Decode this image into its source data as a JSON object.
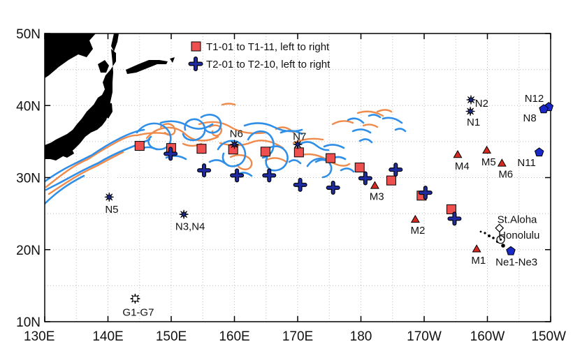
{
  "map": {
    "lat_ticks": [
      "50N",
      "40N",
      "30N",
      "20N",
      "10N"
    ],
    "lon_ticks": [
      "130E",
      "140E",
      "150E",
      "160E",
      "170E",
      "180",
      "170W",
      "160W",
      "150W"
    ],
    "extent": {
      "lon": [
        130,
        210
      ],
      "lat": [
        10,
        50
      ]
    },
    "colors": {
      "land": "#000000",
      "current_warm": "#f08a4b",
      "current_cool": "#2f8fe8",
      "current_white": "#ffffff",
      "grid": "#bdbdbd",
      "square_fill": "#ee5050",
      "cross_fill": "#1f2ba0",
      "triangle_fill": "#d62a20",
      "pentagon_fill": "#1a28c8"
    },
    "legend": [
      {
        "symbol": "square-icon",
        "label": "T1-01 to T1-11, left to right"
      },
      {
        "symbol": "cross-icon",
        "label": "T2-01 to T2-10, left to right"
      }
    ],
    "T1": [
      {
        "lon": 145.0,
        "lat": 34.4
      },
      {
        "lon": 150.0,
        "lat": 34.1
      },
      {
        "lon": 154.8,
        "lat": 34.0
      },
      {
        "lon": 159.8,
        "lat": 33.9
      },
      {
        "lon": 164.9,
        "lat": 33.6
      },
      {
        "lon": 170.2,
        "lat": 33.5
      },
      {
        "lon": 175.2,
        "lat": 32.7
      },
      {
        "lon": 179.8,
        "lat": 31.4
      },
      {
        "lon": 184.8,
        "lat": 29.6
      },
      {
        "lon": 189.6,
        "lat": 27.5
      },
      {
        "lon": 194.3,
        "lat": 25.6
      }
    ],
    "T2": [
      {
        "lon": 149.9,
        "lat": 33.3
      },
      {
        "lon": 155.2,
        "lat": 31.0
      },
      {
        "lon": 160.4,
        "lat": 30.3
      },
      {
        "lon": 165.5,
        "lat": 30.3
      },
      {
        "lon": 170.4,
        "lat": 29.0
      },
      {
        "lon": 175.6,
        "lat": 28.6
      },
      {
        "lon": 180.7,
        "lat": 29.9
      },
      {
        "lon": 185.5,
        "lat": 31.1
      },
      {
        "lon": 190.2,
        "lat": 27.9
      },
      {
        "lon": 194.8,
        "lat": 24.3
      }
    ],
    "stations": [
      {
        "symbol": "triangle",
        "lon": 182.2,
        "lat": 28.9,
        "label": "M3",
        "lx": 182.5,
        "ly": 27.4
      },
      {
        "symbol": "triangle",
        "lon": 188.6,
        "lat": 24.2,
        "label": "M2",
        "lx": 189.0,
        "ly": 22.7
      },
      {
        "symbol": "triangle",
        "lon": 195.3,
        "lat": 33.2,
        "label": "M4",
        "lx": 196.0,
        "ly": 31.6
      },
      {
        "symbol": "triangle",
        "lon": 199.9,
        "lat": 33.8,
        "label": "M5",
        "lx": 200.2,
        "ly": 32.2
      },
      {
        "symbol": "triangle",
        "lon": 202.3,
        "lat": 32.0,
        "label": "M6",
        "lx": 202.9,
        "ly": 30.5
      },
      {
        "symbol": "triangle",
        "lon": 198.3,
        "lat": 20.1,
        "label": "M1",
        "lx": 198.6,
        "ly": 18.5
      },
      {
        "symbol": "star",
        "lon": 160.0,
        "lat": 34.6,
        "label": "N6",
        "lx": 160.3,
        "ly": 36.1
      },
      {
        "symbol": "star",
        "lon": 170.0,
        "lat": 34.6,
        "label": "N7",
        "lx": 170.3,
        "ly": 35.7
      },
      {
        "symbol": "star",
        "lon": 140.2,
        "lat": 27.3,
        "label": "N5",
        "lx": 140.6,
        "ly": 25.6
      },
      {
        "symbol": "star",
        "lon": 152.0,
        "lat": 24.9,
        "label": "N3,N4",
        "lx": 153.0,
        "ly": 23.2
      },
      {
        "symbol": "star",
        "lon": 197.4,
        "lat": 40.8,
        "label": "N2",
        "lx": 199.1,
        "ly": 40.3
      },
      {
        "symbol": "star",
        "lon": 197.3,
        "lat": 39.2,
        "label": "N1",
        "lx": 197.8,
        "ly": 37.7
      },
      {
        "symbol": "pentagon",
        "lon": 209.7,
        "lat": 39.8,
        "label": "N12",
        "lx": 207.4,
        "ly": 41.0
      },
      {
        "symbol": "pentagon",
        "lon": 208.9,
        "lat": 39.5,
        "label": "N8",
        "lx": 206.7,
        "ly": 38.3
      },
      {
        "symbol": "pentagon",
        "lon": 208.2,
        "lat": 33.5,
        "label": "N11",
        "lx": 206.2,
        "ly": 32.1
      },
      {
        "symbol": "pentagon",
        "lon": 203.7,
        "lat": 19.8,
        "label": "Ne1-Ne3",
        "lx": 204.6,
        "ly": 18.3
      },
      {
        "symbol": "diamond",
        "lon": 201.9,
        "lat": 23.0,
        "label": "St.Aloha",
        "lx": 204.7,
        "ly": 24.2
      },
      {
        "symbol": "circle",
        "lon": 202.1,
        "lat": 21.4,
        "label": "Honolulu",
        "lx": 205.0,
        "ly": 22.0
      },
      {
        "symbol": "square-open",
        "lon": 144.3,
        "lat": 13.2,
        "label": "G1-G7",
        "lx": 144.8,
        "ly": 11.3
      }
    ]
  }
}
